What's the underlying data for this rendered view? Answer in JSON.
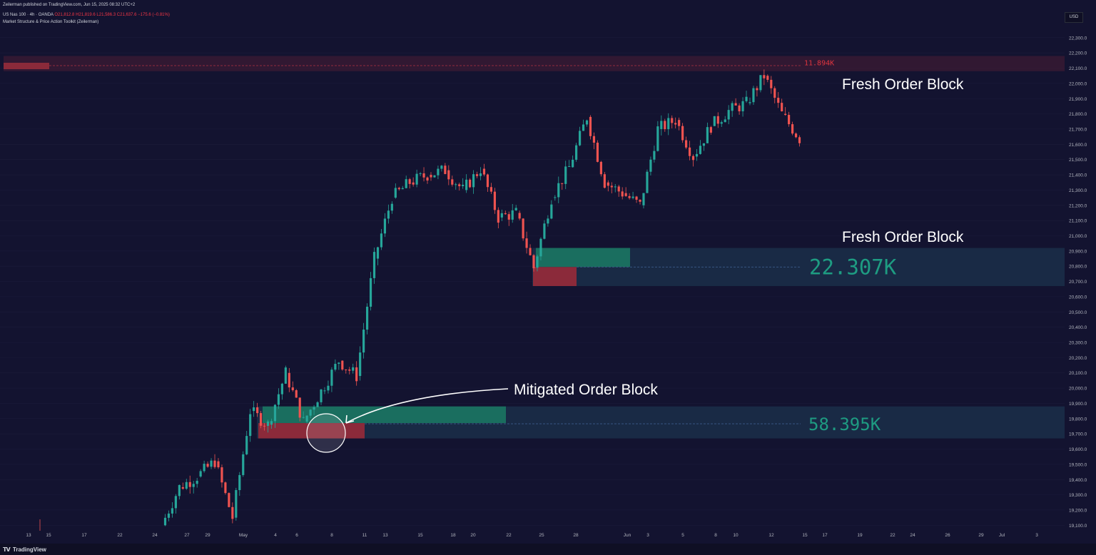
{
  "header": {
    "published": "Zeilerman published on TradingView.com, Jun 15, 2025 08:32 UTC+2",
    "symbol": "US Nas 100 · 4h · OANDA",
    "ohlc": "O21,812.8 H21,819.6 L21,586.3 C21,637.6 −175.6 (−0.81%)",
    "indicator": "Market Structure & Price Action Toolkit (Zeilerman)"
  },
  "currency_badge": "USD",
  "footer_brand": "TradingView",
  "colors": {
    "background": "#131330",
    "bullish": "#26a69a",
    "bearish": "#ef5350",
    "bull_block": "#1a6e5f",
    "bear_block": "#8b2a3a",
    "zone": "#192a45",
    "top_zone": "#3a1a33",
    "top_label": "#e0353f",
    "text": "#ffffff"
  },
  "chart_data": {
    "type": "candlestick",
    "symbol": "US Nas 100",
    "timeframe": "4h",
    "y_axis_ticks": [
      22300,
      22200,
      22100,
      22000,
      21900,
      21800,
      21700,
      21600,
      21500,
      21400,
      21300,
      21200,
      21100,
      21000,
      20900,
      20800,
      20700,
      20600,
      20500,
      20400,
      20300,
      20200,
      20100,
      20000,
      19900,
      19800,
      19700,
      19600,
      19500,
      19400,
      19300,
      19200,
      19100
    ],
    "y_axis_labels": [
      "22,300.0",
      "22,200.0",
      "22,100.0",
      "22,000.0",
      "21,900.0",
      "21,800.0",
      "21,700.0",
      "21,600.0",
      "21,500.0",
      "21,400.0",
      "21,300.0",
      "21,200.0",
      "21,100.0",
      "21,000.0",
      "20,900.0",
      "20,800.0",
      "20,700.0",
      "20,600.0",
      "20,500.0",
      "20,400.0",
      "20,300.0",
      "20,200.0",
      "20,100.0",
      "20,000.0",
      "19,900.0",
      "19,800.0",
      "19,700.0",
      "19,600.0",
      "19,500.0",
      "19,400.0",
      "19,300.0",
      "19,200.0",
      "19,100.0"
    ],
    "x_axis_labels": [
      "13",
      "15",
      "17",
      "22",
      "24",
      "27",
      "29",
      "May",
      "4",
      "6",
      "8",
      "11",
      "13",
      "15",
      "18",
      "20",
      "22",
      "25",
      "28",
      "Jun",
      "3",
      "5",
      "8",
      "10",
      "12",
      "15",
      "17",
      "19",
      "22",
      "24",
      "26",
      "29",
      "Jul",
      "3"
    ],
    "price_path": [
      [
        "Apr 24",
        19100
      ],
      [
        "Apr 25",
        19350
      ],
      [
        "Apr 28",
        19420
      ],
      [
        "Apr 29",
        19520
      ],
      [
        "Apr 30",
        19150
      ],
      [
        "May 1",
        19850
      ],
      [
        "May 2",
        19760
      ],
      [
        "May 5",
        20100
      ],
      [
        "May 6",
        19780
      ],
      [
        "May 7",
        19980
      ],
      [
        "May 8",
        20180
      ],
      [
        "May 9",
        20080
      ],
      [
        "May 12",
        20850
      ],
      [
        "May 13",
        21250
      ],
      [
        "May 14",
        21350
      ],
      [
        "May 15",
        21400
      ],
      [
        "May 16",
        21430
      ],
      [
        "May 19",
        21300
      ],
      [
        "May 20",
        21440
      ],
      [
        "May 21",
        21120
      ],
      [
        "May 22",
        21150
      ],
      [
        "May 23",
        20790
      ],
      [
        "May 26",
        21250
      ],
      [
        "May 27",
        21450
      ],
      [
        "May 28",
        21780
      ],
      [
        "May 29",
        21350
      ],
      [
        "May 30",
        21280
      ],
      [
        "Jun 2",
        21200
      ],
      [
        "Jun 3",
        21700
      ],
      [
        "Jun 4",
        21760
      ],
      [
        "Jun 5",
        21520
      ],
      [
        "Jun 6",
        21720
      ],
      [
        "Jun 9",
        21820
      ],
      [
        "Jun 10",
        21870
      ],
      [
        "Jun 11",
        22050
      ],
      [
        "Jun 12",
        21800
      ],
      [
        "Jun 13",
        21637.6
      ]
    ],
    "order_blocks": [
      {
        "kind": "bearish",
        "range": [
          22080,
          22180
        ],
        "label": "11.894K"
      },
      {
        "kind": "bullish",
        "range": [
          20670,
          20920
        ],
        "label": "22.307K",
        "annotation": "Fresh Order Block"
      },
      {
        "kind": "bullish",
        "range": [
          19670,
          19880
        ],
        "label": "58.395K",
        "annotation": "Mitigated Order Block"
      }
    ],
    "annotations": [
      "Fresh Order Block",
      "Fresh Order Block",
      "Mitigated Order Block"
    ]
  }
}
